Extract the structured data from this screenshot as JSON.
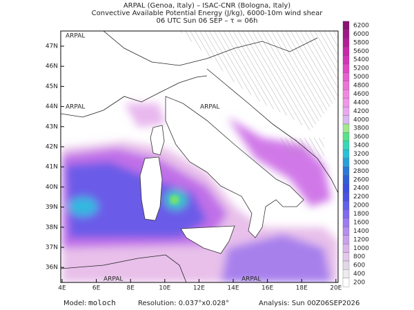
{
  "header": {
    "title_lines": [
      "ARPAL (Genoa, Italy)  –  ISAC-CNR (Bologna, Italy)",
      "Convective Available Potential Energy (J/kg), 6000-10m wind shear",
      "06 UTC Sun 06 SEP  –  τ = 06h"
    ]
  },
  "map": {
    "lat_ticks": [
      {
        "value": 47,
        "label": "47N"
      },
      {
        "value": 46,
        "label": "46N"
      },
      {
        "value": 45,
        "label": "45N"
      },
      {
        "value": 44,
        "label": "44N"
      },
      {
        "value": 43,
        "label": "43N"
      },
      {
        "value": 42,
        "label": "42N"
      },
      {
        "value": 41,
        "label": "41N"
      },
      {
        "value": 40,
        "label": "40N"
      },
      {
        "value": 39,
        "label": "39N"
      },
      {
        "value": 38,
        "label": "38N"
      },
      {
        "value": 37,
        "label": "37N"
      },
      {
        "value": 36,
        "label": "36N"
      }
    ],
    "lon_ticks": [
      {
        "value": 4,
        "label": "4E"
      },
      {
        "value": 6,
        "label": "6E"
      },
      {
        "value": 8,
        "label": "8E"
      },
      {
        "value": 10,
        "label": "10E"
      },
      {
        "value": 12,
        "label": "12E"
      },
      {
        "value": 14,
        "label": "14E"
      },
      {
        "value": 16,
        "label": "16E"
      },
      {
        "value": 18,
        "label": "18E"
      },
      {
        "value": 20,
        "label": "20E"
      }
    ],
    "watermark": "ARPAL"
  },
  "colorbar": {
    "ticks": [
      200,
      400,
      600,
      800,
      1000,
      1200,
      1400,
      1600,
      1800,
      2000,
      2200,
      2400,
      2600,
      2800,
      3000,
      3200,
      3400,
      3600,
      3800,
      4000,
      4200,
      4400,
      4600,
      4800,
      5000,
      5200,
      5400,
      5600,
      5800,
      6000,
      6200
    ],
    "colors": [
      "#ffffff",
      "#ececec",
      "#e0d8e6",
      "#e2c8ea",
      "#d9b5ec",
      "#c9a2ee",
      "#b58ef0",
      "#9b7cf2",
      "#7f6af2",
      "#6060ee",
      "#4a52e6",
      "#3b4fe0",
      "#3060d8",
      "#2a78d8",
      "#27a0dc",
      "#2ac0d8",
      "#38d8b8",
      "#58e48a",
      "#a0e890",
      "#d8b8f0",
      "#e8a8f0",
      "#f096e8",
      "#f088e0",
      "#ec74d8",
      "#e860d0",
      "#e048c4",
      "#d434b8",
      "#c828aa",
      "#b41e98",
      "#a01886",
      "#8a1274"
    ]
  },
  "footer": {
    "model_label": "Model:",
    "model": "moloch",
    "resolution": "Resolution: 0.037°x0.028°",
    "analysis": "Analysis: Sun 00Z06SEP2026"
  }
}
